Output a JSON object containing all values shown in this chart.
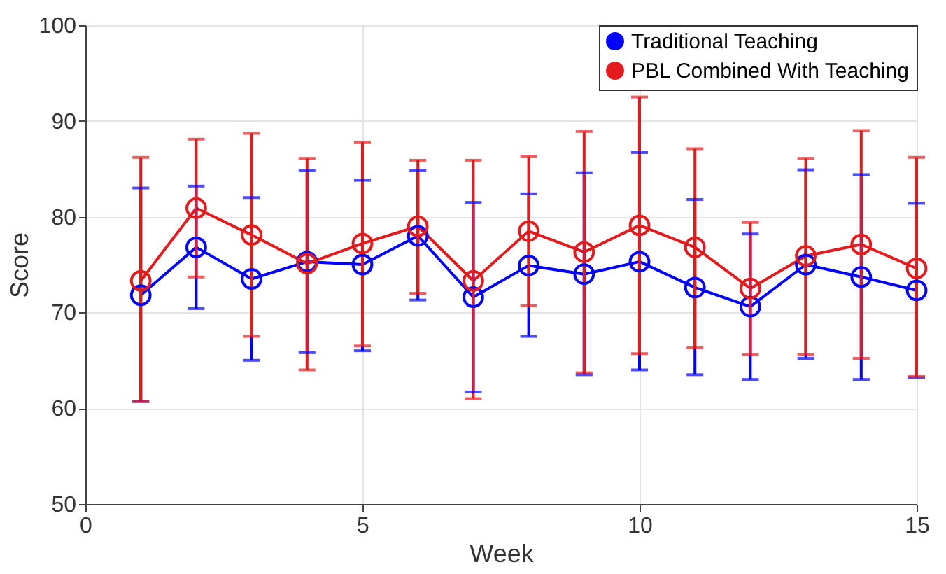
{
  "chart_data": {
    "type": "line",
    "xlabel": "Week",
    "ylabel": "Score",
    "x": [
      1,
      2,
      3,
      4,
      5,
      6,
      7,
      8,
      9,
      10,
      11,
      12,
      13,
      14,
      15
    ],
    "xlim": [
      0,
      15
    ],
    "xticks": [
      0,
      5,
      10,
      15
    ],
    "ylim": [
      50,
      100
    ],
    "yticks": [
      50,
      60,
      70,
      80,
      90,
      100
    ],
    "grid": true,
    "legend": "top right",
    "marker": "circle",
    "line_style": "solid",
    "series": [
      {
        "name": "Traditional Teaching",
        "color": "#0000ff",
        "values": [
          71.8,
          76.8,
          73.5,
          75.3,
          75.0,
          78.0,
          71.6,
          74.9,
          74.0,
          75.3,
          72.6,
          70.6,
          75.0,
          73.7,
          72.3
        ],
        "errors": [
          [
            60.7,
            83.0
          ],
          [
            70.4,
            83.2
          ],
          [
            65.0,
            82.0
          ],
          [
            65.8,
            84.8
          ],
          [
            66.0,
            83.8
          ],
          [
            71.3,
            84.8
          ],
          [
            61.7,
            81.5
          ],
          [
            67.5,
            82.4
          ],
          [
            63.5,
            84.6
          ],
          [
            64.0,
            86.7
          ],
          [
            63.5,
            81.8
          ],
          [
            63.0,
            78.2
          ],
          [
            65.2,
            84.9
          ],
          [
            63.0,
            84.4
          ],
          [
            63.2,
            81.4
          ]
        ]
      },
      {
        "name": "PBL Combined With Teaching",
        "color": "#e41a1c",
        "values": [
          73.3,
          80.9,
          78.1,
          75.1,
          77.2,
          79.0,
          73.3,
          78.5,
          76.3,
          79.1,
          76.8,
          72.5,
          75.9,
          77.1,
          74.6
        ],
        "errors": [
          [
            60.7,
            86.2
          ],
          [
            73.7,
            88.1
          ],
          [
            67.5,
            88.7
          ],
          [
            64.0,
            86.1
          ],
          [
            66.5,
            87.8
          ],
          [
            72.0,
            85.9
          ],
          [
            61.0,
            85.9
          ],
          [
            70.7,
            86.3
          ],
          [
            63.7,
            88.9
          ],
          [
            65.7,
            92.5
          ],
          [
            66.3,
            87.1
          ],
          [
            65.6,
            79.4
          ],
          [
            65.6,
            86.1
          ],
          [
            65.2,
            89.0
          ],
          [
            63.3,
            86.2
          ]
        ]
      }
    ]
  }
}
